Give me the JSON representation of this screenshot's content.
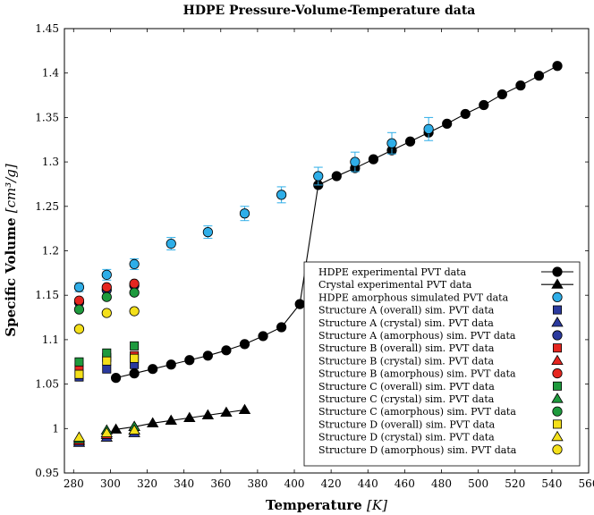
{
  "chart_data": {
    "type": "scatter",
    "title": "HDPE Pressure-Volume-Temperature data",
    "xlabel": "Temperature",
    "xunit": "[K]",
    "ylabel": "Specific Volume",
    "yunit": "[cm³/g]",
    "xlim": [
      275,
      560
    ],
    "ylim": [
      0.95,
      1.45
    ],
    "xticks": [
      280,
      300,
      320,
      340,
      360,
      380,
      400,
      420,
      440,
      460,
      480,
      500,
      520,
      540,
      560
    ],
    "yticks": [
      0.95,
      1,
      1.05,
      1.1,
      1.15,
      1.2,
      1.25,
      1.3,
      1.35,
      1.4,
      1.45
    ],
    "ytick_labels": [
      "0.95",
      "1",
      "1.05",
      "1.1",
      "1.15",
      "1.2",
      "1.25",
      "1.3",
      "1.35",
      "1.4",
      "1.45"
    ],
    "grid": false,
    "legend_position": "bottom-right",
    "series": [
      {
        "name": "HDPE experimental PVT data",
        "marker": "circle",
        "color": "#000000",
        "line": true,
        "x": [
          303,
          313,
          323,
          333,
          343,
          353,
          363,
          373,
          383,
          393,
          403,
          413,
          423,
          433,
          443,
          453,
          463,
          473,
          483,
          493,
          503,
          513,
          523,
          533,
          543
        ],
        "y": [
          1.057,
          1.062,
          1.067,
          1.072,
          1.077,
          1.082,
          1.088,
          1.095,
          1.104,
          1.114,
          1.14,
          1.274,
          1.284,
          1.293,
          1.303,
          1.313,
          1.323,
          1.333,
          1.343,
          1.354,
          1.364,
          1.376,
          1.386,
          1.397,
          1.408
        ]
      },
      {
        "name": "Crystal experimental PVT data",
        "marker": "triangle",
        "color": "#000000",
        "line": true,
        "x": [
          303,
          313,
          323,
          333,
          343,
          353,
          363,
          373
        ],
        "y": [
          0.999,
          1.002,
          1.006,
          1.009,
          1.012,
          1.015,
          1.018,
          1.021
        ]
      },
      {
        "name": "HDPE amorphous simulated PVT data",
        "marker": "circle",
        "color": "#2eaee8",
        "line": false,
        "errorbars": true,
        "x": [
          283,
          298,
          313,
          333,
          353,
          373,
          393,
          413,
          433,
          453,
          473
        ],
        "y": [
          1.159,
          1.173,
          1.185,
          1.208,
          1.221,
          1.242,
          1.263,
          1.284,
          1.3,
          1.321,
          1.337
        ],
        "err": [
          0.005,
          0.006,
          0.006,
          0.007,
          0.007,
          0.008,
          0.009,
          0.01,
          0.011,
          0.012,
          0.013
        ]
      },
      {
        "name": "Structure A (overall) sim. PVT data",
        "marker": "square",
        "color": "#2b3a9e",
        "line": false,
        "x": [
          283,
          298,
          313
        ],
        "y": [
          1.058,
          1.067,
          1.072
        ]
      },
      {
        "name": "Structure A (crystal) sim. PVT data",
        "marker": "triangle",
        "color": "#2b3a9e",
        "line": false,
        "x": [
          283,
          298,
          313
        ],
        "y": [
          0.984,
          0.99,
          0.995
        ]
      },
      {
        "name": "Structure A (amorphous) sim. PVT data",
        "marker": "circle",
        "color": "#2b3a9e",
        "line": false,
        "x": [
          283,
          298,
          313
        ],
        "y": [
          1.142,
          1.156,
          1.161
        ]
      },
      {
        "name": "Structure B (overall) sim. PVT data",
        "marker": "square",
        "color": "#e52620",
        "line": false,
        "x": [
          283,
          298,
          313
        ],
        "y": [
          1.068,
          1.08,
          1.082
        ]
      },
      {
        "name": "Structure B (crystal) sim. PVT data",
        "marker": "triangle",
        "color": "#e52620",
        "line": false,
        "x": [
          283,
          298,
          313
        ],
        "y": [
          0.986,
          0.993,
          0.998
        ]
      },
      {
        "name": "Structure B (amorphous) sim. PVT data",
        "marker": "circle",
        "color": "#e52620",
        "line": false,
        "x": [
          283,
          298,
          313
        ],
        "y": [
          1.144,
          1.159,
          1.163
        ]
      },
      {
        "name": "Structure C (overall) sim. PVT data",
        "marker": "square",
        "color": "#1e9a3d",
        "line": false,
        "x": [
          283,
          298,
          313
        ],
        "y": [
          1.075,
          1.085,
          1.093
        ]
      },
      {
        "name": "Structure C (crystal) sim. PVT data",
        "marker": "triangle",
        "color": "#1e9a3d",
        "line": false,
        "x": [
          283,
          298,
          313
        ],
        "y": [
          0.988,
          0.998,
          1.002
        ]
      },
      {
        "name": "Structure C (amorphous) sim. PVT data",
        "marker": "circle",
        "color": "#1e9a3d",
        "line": false,
        "x": [
          283,
          298,
          313
        ],
        "y": [
          1.134,
          1.148,
          1.153
        ]
      },
      {
        "name": "Structure D (overall) sim. PVT data",
        "marker": "square",
        "color": "#f4e01a",
        "line": false,
        "x": [
          283,
          298,
          313
        ],
        "y": [
          1.061,
          1.076,
          1.079
        ]
      },
      {
        "name": "Structure D (crystal) sim. PVT data",
        "marker": "triangle",
        "color": "#f4e01a",
        "line": false,
        "x": [
          283,
          298,
          313
        ],
        "y": [
          0.99,
          0.995,
          0.998
        ]
      },
      {
        "name": "Structure D (amorphous) sim. PVT data",
        "marker": "circle",
        "color": "#f4e01a",
        "line": false,
        "x": [
          283,
          298,
          313
        ],
        "y": [
          1.112,
          1.13,
          1.132
        ]
      }
    ]
  }
}
